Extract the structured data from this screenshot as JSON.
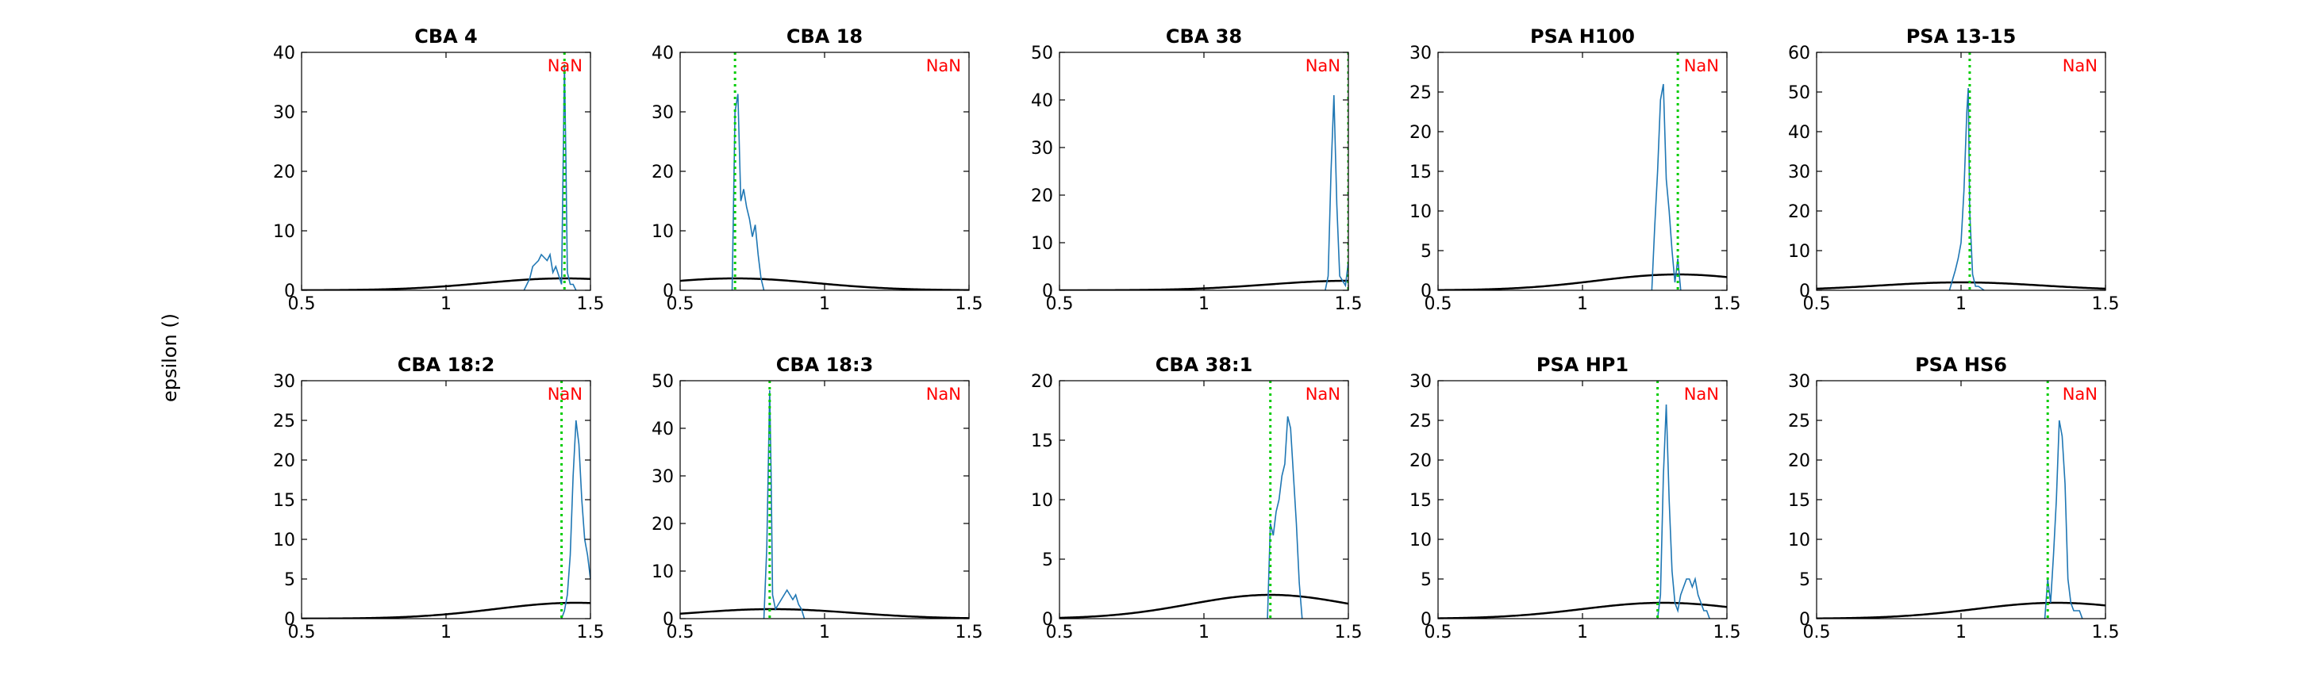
{
  "figure": {
    "ylabel": "epsilon ()",
    "annotation": "NaN",
    "colors": {
      "hist": "#1f77b4",
      "gauss": "#000000",
      "vline": "#00cc00",
      "nan": "#ff0000",
      "axis": "#000000"
    }
  },
  "chart_data": [
    {
      "type": "line",
      "title": "CBA 4",
      "xlim": [
        0.5,
        1.5
      ],
      "ylim": [
        0,
        40
      ],
      "xticks": [
        0.5,
        1,
        1.5
      ],
      "yticks": [
        0,
        10,
        20,
        30,
        40
      ],
      "vline": 1.41,
      "annotation": "NaN",
      "series": [
        {
          "x": [
            1.27,
            1.29,
            1.3,
            1.31,
            1.32,
            1.33,
            1.34,
            1.35,
            1.36,
            1.37,
            1.38,
            1.39,
            1.4,
            1.41,
            1.415,
            1.42,
            1.43,
            1.44,
            1.45
          ],
          "y": [
            0,
            2,
            4,
            4.5,
            5,
            6,
            5.5,
            5,
            6,
            3,
            4,
            2.5,
            1,
            38,
            22,
            3,
            1,
            1,
            0
          ]
        },
        {
          "type": "gaussian",
          "mu": 1.41,
          "sigma": 0.28,
          "peak": 2
        }
      ]
    },
    {
      "type": "line",
      "title": "CBA 18",
      "xlim": [
        0.5,
        1.5
      ],
      "ylim": [
        0,
        40
      ],
      "xticks": [
        0.5,
        1,
        1.5
      ],
      "yticks": [
        0,
        10,
        20,
        30,
        40
      ],
      "vline": 0.69,
      "annotation": "NaN",
      "series": [
        {
          "x": [
            0.68,
            0.69,
            0.7,
            0.71,
            0.72,
            0.73,
            0.74,
            0.75,
            0.76,
            0.77,
            0.78,
            0.79
          ],
          "y": [
            0,
            30,
            33,
            15,
            17,
            14,
            12,
            9,
            11,
            6,
            2,
            0
          ]
        },
        {
          "type": "gaussian",
          "mu": 0.69,
          "sigma": 0.28,
          "peak": 2
        }
      ]
    },
    {
      "type": "line",
      "title": "CBA 38",
      "xlim": [
        0.5,
        1.5
      ],
      "ylim": [
        0,
        50
      ],
      "xticks": [
        0.5,
        1,
        1.5
      ],
      "yticks": [
        0,
        10,
        20,
        30,
        40,
        50
      ],
      "vline": 1.5,
      "annotation": "NaN",
      "series": [
        {
          "x": [
            1.42,
            1.43,
            1.44,
            1.45,
            1.46,
            1.47,
            1.48,
            1.49,
            1.5
          ],
          "y": [
            0,
            3,
            25,
            41,
            18,
            3,
            2,
            1,
            6
          ]
        },
        {
          "type": "gaussian",
          "mu": 1.5,
          "sigma": 0.28,
          "peak": 2
        }
      ]
    },
    {
      "type": "line",
      "title": "PSA H100",
      "xlim": [
        0.5,
        1.5
      ],
      "ylim": [
        0,
        30
      ],
      "xticks": [
        0.5,
        1,
        1.5
      ],
      "yticks": [
        0,
        5,
        10,
        15,
        20,
        25,
        30
      ],
      "vline": 1.33,
      "annotation": "NaN",
      "series": [
        {
          "x": [
            1.24,
            1.25,
            1.26,
            1.27,
            1.28,
            1.29,
            1.3,
            1.31,
            1.32,
            1.33,
            1.34
          ],
          "y": [
            0,
            8,
            15,
            24,
            26,
            14,
            10,
            5,
            1,
            4,
            0
          ]
        },
        {
          "type": "gaussian",
          "mu": 1.33,
          "sigma": 0.28,
          "peak": 2
        }
      ]
    },
    {
      "type": "line",
      "title": "PSA 13-15",
      "xlim": [
        0.5,
        1.5
      ],
      "ylim": [
        0,
        60
      ],
      "xticks": [
        0.5,
        1,
        1.5
      ],
      "yticks": [
        0,
        10,
        20,
        30,
        40,
        50,
        60
      ],
      "vline": 1.03,
      "annotation": "NaN",
      "series": [
        {
          "x": [
            0.96,
            0.98,
            0.99,
            1.0,
            1.01,
            1.02,
            1.025,
            1.03,
            1.04,
            1.05,
            1.06,
            1.08
          ],
          "y": [
            0,
            5,
            8,
            12,
            25,
            45,
            51,
            20,
            4,
            1,
            1,
            0
          ]
        },
        {
          "type": "gaussian",
          "mu": 1.0,
          "sigma": 0.28,
          "peak": 2
        }
      ]
    },
    {
      "type": "line",
      "title": "CBA 18:2",
      "xlim": [
        0.5,
        1.5
      ],
      "ylim": [
        0,
        30
      ],
      "xticks": [
        0.5,
        1,
        1.5
      ],
      "yticks": [
        0,
        5,
        10,
        15,
        20,
        25,
        30
      ],
      "vline": 1.4,
      "annotation": "NaN",
      "series": [
        {
          "x": [
            1.4,
            1.41,
            1.42,
            1.43,
            1.44,
            1.45,
            1.46,
            1.47,
            1.48,
            1.49,
            1.5
          ],
          "y": [
            0,
            1,
            3,
            8,
            18,
            25,
            22,
            15,
            10,
            8,
            5
          ]
        },
        {
          "type": "gaussian",
          "mu": 1.45,
          "sigma": 0.28,
          "peak": 2
        }
      ]
    },
    {
      "type": "line",
      "title": "CBA 18:3",
      "xlim": [
        0.5,
        1.5
      ],
      "ylim": [
        0,
        50
      ],
      "xticks": [
        0.5,
        1,
        1.5
      ],
      "yticks": [
        0,
        10,
        20,
        30,
        40,
        50
      ],
      "vline": 0.81,
      "annotation": "NaN",
      "series": [
        {
          "x": [
            0.79,
            0.8,
            0.81,
            0.815,
            0.82,
            0.83,
            0.84,
            0.85,
            0.86,
            0.87,
            0.88,
            0.89,
            0.9,
            0.91,
            0.92,
            0.93
          ],
          "y": [
            0,
            15,
            48,
            30,
            5,
            2,
            3,
            4,
            5,
            6,
            5,
            4,
            5,
            3,
            2,
            0
          ]
        },
        {
          "type": "gaussian",
          "mu": 0.82,
          "sigma": 0.28,
          "peak": 2
        }
      ]
    },
    {
      "type": "line",
      "title": "CBA 38:1",
      "xlim": [
        0.5,
        1.5
      ],
      "ylim": [
        0,
        20
      ],
      "xticks": [
        0.5,
        1,
        1.5
      ],
      "yticks": [
        0,
        5,
        10,
        15,
        20
      ],
      "vline": 1.23,
      "annotation": "NaN",
      "series": [
        {
          "x": [
            1.22,
            1.23,
            1.24,
            1.25,
            1.26,
            1.27,
            1.28,
            1.29,
            1.3,
            1.31,
            1.32,
            1.33,
            1.34
          ],
          "y": [
            0,
            8,
            7,
            9,
            10,
            12,
            13,
            17,
            16,
            12,
            8,
            3,
            0
          ]
        },
        {
          "type": "gaussian",
          "mu": 1.23,
          "sigma": 0.28,
          "peak": 2
        }
      ]
    },
    {
      "type": "line",
      "title": "PSA HP1",
      "xlim": [
        0.5,
        1.5
      ],
      "ylim": [
        0,
        30
      ],
      "xticks": [
        0.5,
        1,
        1.5
      ],
      "yticks": [
        0,
        5,
        10,
        15,
        20,
        25,
        30
      ],
      "vline": 1.26,
      "annotation": "NaN",
      "series": [
        {
          "x": [
            1.26,
            1.27,
            1.28,
            1.29,
            1.3,
            1.31,
            1.32,
            1.33,
            1.34,
            1.35,
            1.36,
            1.37,
            1.38,
            1.39,
            1.4,
            1.41,
            1.42,
            1.43,
            1.44
          ],
          "y": [
            0,
            3,
            18,
            27,
            15,
            6,
            2,
            1,
            3,
            4,
            5,
            5,
            4,
            5,
            3,
            2,
            1,
            1,
            0
          ]
        },
        {
          "type": "gaussian",
          "mu": 1.28,
          "sigma": 0.28,
          "peak": 2
        }
      ]
    },
    {
      "type": "line",
      "title": "PSA HS6",
      "xlim": [
        0.5,
        1.5
      ],
      "ylim": [
        0,
        30
      ],
      "xticks": [
        0.5,
        1,
        1.5
      ],
      "yticks": [
        0,
        5,
        10,
        15,
        20,
        25,
        30
      ],
      "vline": 1.3,
      "annotation": "NaN",
      "series": [
        {
          "x": [
            1.29,
            1.3,
            1.31,
            1.32,
            1.33,
            1.34,
            1.35,
            1.36,
            1.37,
            1.38,
            1.39,
            1.4,
            1.41,
            1.42
          ],
          "y": [
            0,
            5,
            2,
            8,
            15,
            25,
            23,
            17,
            5,
            2,
            1,
            1,
            1,
            0
          ]
        },
        {
          "type": "gaussian",
          "mu": 1.33,
          "sigma": 0.28,
          "peak": 2
        }
      ]
    }
  ]
}
